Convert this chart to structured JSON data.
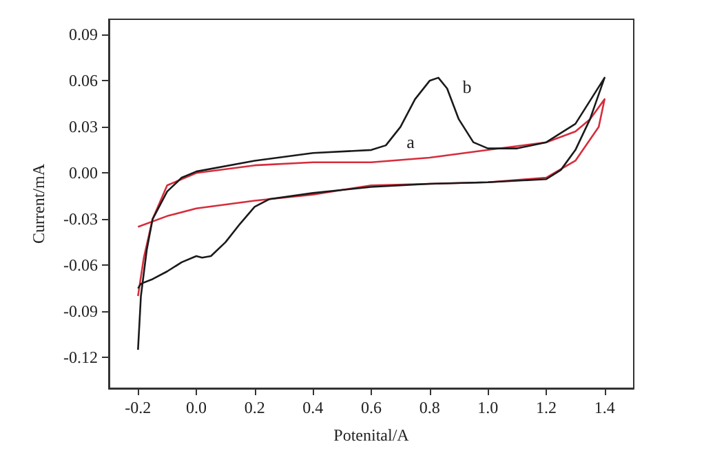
{
  "chart_data": {
    "type": "line",
    "xlabel": "Potenital/A",
    "ylabel": "Current/mA",
    "xlim": [
      -0.3,
      1.5
    ],
    "ylim": [
      -0.14,
      0.1
    ],
    "xticks": [
      {
        "value": -0.2,
        "label": "-0.2"
      },
      {
        "value": 0,
        "label": "0.0"
      },
      {
        "value": 0.2,
        "label": "0.2"
      },
      {
        "value": 0.4,
        "label": "0.4"
      },
      {
        "value": 0.6,
        "label": "0.6"
      },
      {
        "value": 0.8,
        "label": "0.8"
      },
      {
        "value": 1.0,
        "label": "1.0"
      },
      {
        "value": 1.2,
        "label": "1.2"
      },
      {
        "value": 1.4,
        "label": "1.4"
      }
    ],
    "yticks": [
      {
        "value": -0.12,
        "label": "-0.12"
      },
      {
        "value": -0.09,
        "label": "-0.09"
      },
      {
        "value": -0.06,
        "label": "-0.06"
      },
      {
        "value": -0.03,
        "label": "-0.03"
      },
      {
        "value": 0,
        "label": "0.00"
      },
      {
        "value": 0.03,
        "label": "0.03"
      },
      {
        "value": 0.06,
        "label": "0.06"
      },
      {
        "value": 0.09,
        "label": "0.09"
      }
    ],
    "grid": false,
    "marker": "none",
    "line_style": "solid",
    "series": [
      {
        "color": "#d62d3c",
        "x": [
          -0.2,
          -0.1,
          0.0,
          0.2,
          0.4,
          0.6,
          0.8,
          1.0,
          1.2,
          1.3,
          1.38,
          1.4,
          1.35,
          1.3,
          1.2,
          1.0,
          0.8,
          0.6,
          0.4,
          0.2,
          0.0,
          -0.1,
          -0.15,
          -0.18,
          -0.2
        ],
        "values": [
          -0.035,
          -0.028,
          -0.023,
          -0.018,
          -0.014,
          -0.008,
          -0.007,
          -0.006,
          -0.003,
          0.008,
          0.03,
          0.048,
          0.035,
          0.027,
          0.02,
          0.015,
          0.01,
          0.007,
          0.007,
          0.005,
          0.0,
          -0.008,
          -0.03,
          -0.055,
          -0.08
        ]
      },
      {
        "color": "#1a1a1a",
        "x": [
          -0.2,
          -0.19,
          -0.17,
          -0.15,
          -0.1,
          -0.05,
          0.0,
          0.2,
          0.4,
          0.6,
          0.65,
          0.7,
          0.75,
          0.8,
          0.83,
          0.86,
          0.9,
          0.95,
          1.0,
          1.1,
          1.2,
          1.3,
          1.4,
          1.35,
          1.3,
          1.25,
          1.2,
          1.0,
          0.8,
          0.6,
          0.4,
          0.25,
          0.2,
          0.15,
          0.1,
          0.05,
          0.02,
          0.0,
          -0.05,
          -0.1,
          -0.15,
          -0.19,
          -0.2
        ],
        "values": [
          -0.115,
          -0.08,
          -0.05,
          -0.03,
          -0.012,
          -0.003,
          0.001,
          0.008,
          0.013,
          0.015,
          0.018,
          0.03,
          0.048,
          0.06,
          0.062,
          0.055,
          0.035,
          0.02,
          0.016,
          0.016,
          0.02,
          0.032,
          0.062,
          0.035,
          0.015,
          0.002,
          -0.004,
          -0.006,
          -0.007,
          -0.009,
          -0.013,
          -0.017,
          -0.022,
          -0.033,
          -0.045,
          -0.054,
          -0.055,
          -0.054,
          -0.058,
          -0.064,
          -0.069,
          -0.072,
          -0.075
        ]
      }
    ],
    "annotations": [
      "a",
      "b"
    ]
  }
}
